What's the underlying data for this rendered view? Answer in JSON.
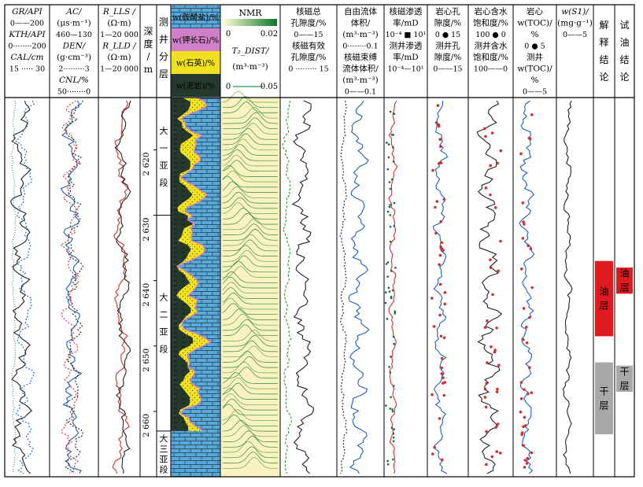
{
  "chart_data": {
    "type": "line",
    "depth": {
      "label": "深度/m",
      "range": [
        2612,
        2670
      ],
      "ticks": [
        2620,
        2630,
        2640,
        2650,
        2660
      ],
      "tick_labels": [
        "2 620",
        "2 630",
        "2 640",
        "2 650",
        "2 660"
      ]
    },
    "tracks": [
      {
        "id": "track1",
        "headers": [
          {
            "text": "GR/API",
            "scale": "0——200"
          },
          {
            "text": "KTH/API",
            "scale": "0········200"
          },
          {
            "text": "CAL/cm",
            "scale": "15 ····· 30"
          }
        ],
        "colors": [
          "#222222",
          "#1f5fbf",
          "#2a8a8a"
        ]
      },
      {
        "id": "track2",
        "headers": [
          {
            "text": "AC/",
            "unit": "(μs·m⁻¹)",
            "scale": "460—130"
          },
          {
            "text": "DEN/",
            "unit": "(g·cm⁻³)",
            "scale": "2·········3"
          },
          {
            "text": "CNL/%",
            "scale": "50········0"
          }
        ],
        "colors": [
          "#1f5fbf",
          "#222222",
          "#d03030"
        ]
      },
      {
        "id": "track3",
        "headers": [
          {
            "text": "R_LLS /",
            "unit": "(Ω·m)",
            "scale": "1—20 000"
          },
          {
            "text": "R_LLD /",
            "unit": "(Ω·m)",
            "scale": "1—20 000"
          }
        ],
        "colors": [
          "#d03030",
          "#222222"
        ]
      },
      {
        "id": "track7",
        "headers": [
          {
            "text": "核磁总",
            "unit": "孔隙度/%",
            "scale": "0——15"
          },
          {
            "text": "核磁有效",
            "unit": "孔隙度/%",
            "scale": "0 ········· 15"
          }
        ],
        "colors": [
          "#222222",
          "#2a9a2a"
        ]
      },
      {
        "id": "track8",
        "headers": [
          {
            "text": "自由流体",
            "unit": "体积/",
            "unit2": "(m³·m⁻³)",
            "scale": "0········0.1"
          },
          {
            "text": "核磁束缚",
            "unit": "流体体积/",
            "unit2": "(m³·m⁻³)",
            "scale": "0——0.1"
          }
        ],
        "colors": [
          "#222222",
          "#1f5fbf"
        ]
      },
      {
        "id": "track9",
        "headers": [
          {
            "text": "核磁渗透",
            "unit": "率/mD",
            "scale": "10⁻⁴ ■ 10¹"
          },
          {
            "text": "测井渗透",
            "unit": "率/mD",
            "scale": "10⁻⁴—10¹"
          }
        ],
        "colors": [
          "#1a6a3a",
          "#d03030"
        ]
      },
      {
        "id": "track10",
        "headers": [
          {
            "text": "岩心孔",
            "unit": "隙度/%",
            "scale": "0 ● 15"
          },
          {
            "text": "测井孔",
            "unit": "隙度/%",
            "scale": "0——15"
          }
        ],
        "colors": [
          "#d03030",
          "#1f5fbf"
        ]
      },
      {
        "id": "track11",
        "headers": [
          {
            "text": "岩心含水",
            "unit": "饱和度/%",
            "scale": "100 ● 0"
          },
          {
            "text": "测井含水",
            "unit": "饱和度/%",
            "scale": "100——0"
          }
        ],
        "colors": [
          "#d03030",
          "#222222"
        ]
      },
      {
        "id": "track12",
        "headers": [
          {
            "text": "岩心",
            "unit": "w(TOC)/",
            "unit2": "%",
            "scale": "0 ● 5"
          },
          {
            "text": "测井",
            "unit": "w(TOC)/",
            "unit2": "%",
            "scale": "0——5"
          }
        ],
        "colors": [
          "#d03030",
          "#1f5fbf"
        ]
      },
      {
        "id": "track13",
        "headers": [
          {
            "text": "w(S1)/",
            "unit": "(mg·g⁻¹)",
            "scale": "0——5"
          }
        ],
        "colors": [
          "#222222"
        ]
      }
    ],
    "strat": {
      "header": "测井分层",
      "units": [
        {
          "label": "大一亚段",
          "top": 2612,
          "bottom": 2630
        },
        {
          "label": "大二亚段",
          "top": 2630,
          "bottom": 2663
        },
        {
          "label": "大三亚段",
          "top": 2663,
          "bottom": 2670
        }
      ]
    },
    "minerals": {
      "legend": [
        "w(碳酸盐)/%",
        "w(钾长石)/%",
        "w(石英)/%",
        "w(泥岩)/%"
      ],
      "colors": [
        "#5aa8d8",
        "#d080c8",
        "#f0e020",
        "#25392e"
      ]
    },
    "nmr": {
      "label": "NMR",
      "scale": [
        "0",
        "0.02"
      ],
      "dist_label": "T₂_DIST/",
      "dist_unit": "(m³·m⁻³)",
      "dist_scale": [
        "0",
        "0.05"
      ]
    },
    "interpretation": {
      "header": "解释结论",
      "zones": [
        {
          "label": "油层",
          "top": 2637,
          "bottom": 2648.5,
          "color": "#e01820"
        },
        {
          "label": "干层",
          "top": 2652.5,
          "bottom": 2663.5,
          "color": "#a8a8a8"
        }
      ]
    },
    "test": {
      "header": "试油结论",
      "zones": [
        {
          "label": "油层",
          "top": 2638,
          "bottom": 2642,
          "color": "#e01820"
        },
        {
          "label": "干层",
          "top": 2653,
          "bottom": 2657,
          "color": "#a8a8a8"
        }
      ]
    }
  }
}
